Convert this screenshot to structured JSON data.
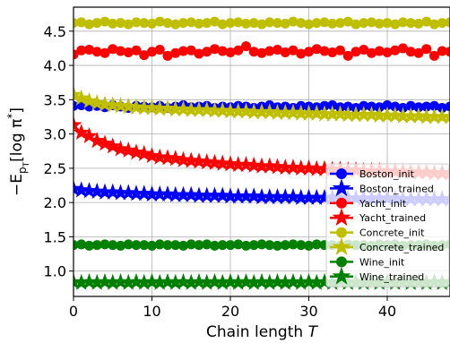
{
  "chart_data": {
    "type": "line",
    "xlabel_text": "Chain length ",
    "xlabel_var": "T",
    "ylabel": "−E_{p_T}[log π*]",
    "xlim": [
      0,
      48
    ],
    "ylim": [
      0.63,
      4.85
    ],
    "xticks": [
      0,
      10,
      20,
      30,
      40
    ],
    "yticks": [
      1.0,
      1.5,
      2.0,
      2.5,
      3.0,
      3.5,
      4.0,
      4.5
    ],
    "grid": true,
    "legend_position": "lower-right",
    "x": [
      0,
      1,
      2,
      3,
      4,
      5,
      6,
      7,
      8,
      9,
      10,
      11,
      12,
      13,
      14,
      15,
      16,
      17,
      18,
      19,
      20,
      21,
      22,
      23,
      24,
      25,
      26,
      27,
      28,
      29,
      30,
      31,
      32,
      33,
      34,
      35,
      36,
      37,
      38,
      39,
      40,
      41,
      42,
      43,
      44,
      45,
      46,
      47,
      48
    ],
    "series": [
      {
        "name": "Boston_init",
        "color": "#0000ff",
        "marker": "circle",
        "values": [
          3.41,
          3.42,
          3.4,
          3.41,
          3.39,
          3.42,
          3.4,
          3.38,
          3.41,
          3.4,
          3.39,
          3.41,
          3.38,
          3.4,
          3.42,
          3.39,
          3.4,
          3.41,
          3.38,
          3.4,
          3.39,
          3.41,
          3.4,
          3.38,
          3.4,
          3.42,
          3.39,
          3.4,
          3.38,
          3.41,
          3.4,
          3.39,
          3.41,
          3.42,
          3.39,
          3.4,
          3.38,
          3.41,
          3.4,
          3.39,
          3.42,
          3.4,
          3.38,
          3.41,
          3.39,
          3.4,
          3.41,
          3.38,
          3.4
        ]
      },
      {
        "name": "Boston_trained",
        "color": "#0000ff",
        "marker": "star",
        "values": [
          2.2,
          2.18,
          2.17,
          2.16,
          2.15,
          2.15,
          2.14,
          2.14,
          2.13,
          2.13,
          2.12,
          2.12,
          2.12,
          2.11,
          2.11,
          2.11,
          2.1,
          2.1,
          2.1,
          2.1,
          2.09,
          2.09,
          2.09,
          2.09,
          2.08,
          2.08,
          2.08,
          2.08,
          2.08,
          2.07,
          2.07,
          2.07,
          2.07,
          2.07,
          2.07,
          2.06,
          2.06,
          2.06,
          2.06,
          2.06,
          2.06,
          2.06,
          2.05,
          2.05,
          2.05,
          2.05,
          2.05,
          2.05,
          2.05
        ]
      },
      {
        "name": "Yacht_init",
        "color": "#ff0000",
        "marker": "circle",
        "values": [
          4.16,
          4.22,
          4.23,
          4.2,
          4.18,
          4.24,
          4.21,
          4.19,
          4.22,
          4.15,
          4.2,
          4.23,
          4.14,
          4.18,
          4.21,
          4.22,
          4.17,
          4.2,
          4.24,
          4.21,
          4.19,
          4.22,
          4.28,
          4.2,
          4.18,
          4.21,
          4.23,
          4.19,
          4.22,
          4.17,
          4.2,
          4.24,
          4.21,
          4.19,
          4.22,
          4.14,
          4.2,
          4.23,
          4.18,
          4.21,
          4.19,
          4.22,
          4.25,
          4.2,
          4.18,
          4.24,
          4.14,
          4.21,
          4.2
        ]
      },
      {
        "name": "Yacht_trained",
        "color": "#ff0000",
        "marker": "star",
        "values": [
          3.13,
          3.02,
          2.97,
          2.9,
          2.86,
          2.82,
          2.78,
          2.76,
          2.73,
          2.71,
          2.68,
          2.66,
          2.65,
          2.64,
          2.62,
          2.61,
          2.6,
          2.59,
          2.58,
          2.57,
          2.56,
          2.55,
          2.55,
          2.54,
          2.53,
          2.53,
          2.52,
          2.51,
          2.51,
          2.5,
          2.5,
          2.49,
          2.49,
          2.48,
          2.48,
          2.47,
          2.47,
          2.46,
          2.46,
          2.46,
          2.45,
          2.45,
          2.45,
          2.44,
          2.44,
          2.44,
          2.43,
          2.43,
          2.43
        ]
      },
      {
        "name": "Concrete_init",
        "color": "#bfbf00",
        "marker": "circle",
        "values": [
          4.62,
          4.63,
          4.6,
          4.62,
          4.64,
          4.61,
          4.62,
          4.6,
          4.63,
          4.62,
          4.61,
          4.64,
          4.62,
          4.6,
          4.62,
          4.63,
          4.61,
          4.62,
          4.64,
          4.6,
          4.62,
          4.63,
          4.61,
          4.62,
          4.6,
          4.63,
          4.62,
          4.61,
          4.64,
          4.62,
          4.6,
          4.62,
          4.63,
          4.61,
          4.62,
          4.64,
          4.6,
          4.62,
          4.63,
          4.61,
          4.62,
          4.6,
          4.63,
          4.62,
          4.61,
          4.64,
          4.6,
          4.62,
          4.63
        ]
      },
      {
        "name": "Concrete_trained",
        "color": "#bfbf00",
        "marker": "star",
        "values": [
          3.57,
          3.52,
          3.48,
          3.45,
          3.43,
          3.42,
          3.41,
          3.4,
          3.39,
          3.38,
          3.38,
          3.37,
          3.37,
          3.36,
          3.36,
          3.35,
          3.35,
          3.35,
          3.34,
          3.34,
          3.33,
          3.33,
          3.33,
          3.32,
          3.32,
          3.32,
          3.31,
          3.31,
          3.31,
          3.3,
          3.3,
          3.3,
          3.29,
          3.29,
          3.29,
          3.28,
          3.28,
          3.28,
          3.28,
          3.27,
          3.27,
          3.27,
          3.26,
          3.26,
          3.26,
          3.25,
          3.25,
          3.25,
          3.25
        ]
      },
      {
        "name": "Wine_init",
        "color": "#008000",
        "marker": "circle",
        "values": [
          1.38,
          1.39,
          1.37,
          1.38,
          1.39,
          1.38,
          1.37,
          1.39,
          1.38,
          1.38,
          1.37,
          1.39,
          1.38,
          1.38,
          1.37,
          1.39,
          1.38,
          1.39,
          1.37,
          1.38,
          1.38,
          1.39,
          1.37,
          1.38,
          1.39,
          1.38,
          1.37,
          1.38,
          1.39,
          1.38,
          1.37,
          1.39,
          1.38,
          1.38,
          1.37,
          1.39,
          1.38,
          1.38,
          1.37,
          1.39,
          1.38,
          1.39,
          1.37,
          1.38,
          1.38,
          1.39,
          1.37,
          1.38,
          1.39
        ]
      },
      {
        "name": "Wine_trained",
        "color": "#008000",
        "marker": "star",
        "values": [
          0.84,
          0.83,
          0.84,
          0.83,
          0.84,
          0.83,
          0.84,
          0.83,
          0.84,
          0.83,
          0.84,
          0.83,
          0.84,
          0.83,
          0.84,
          0.83,
          0.84,
          0.83,
          0.84,
          0.83,
          0.84,
          0.83,
          0.84,
          0.83,
          0.84,
          0.83,
          0.84,
          0.83,
          0.84,
          0.83,
          0.84,
          0.83,
          0.84,
          0.83,
          0.84,
          0.83,
          0.84,
          0.83,
          0.84,
          0.83,
          0.84,
          0.83,
          0.84,
          0.83,
          0.84,
          0.83,
          0.84,
          0.83,
          0.84
        ]
      }
    ]
  }
}
